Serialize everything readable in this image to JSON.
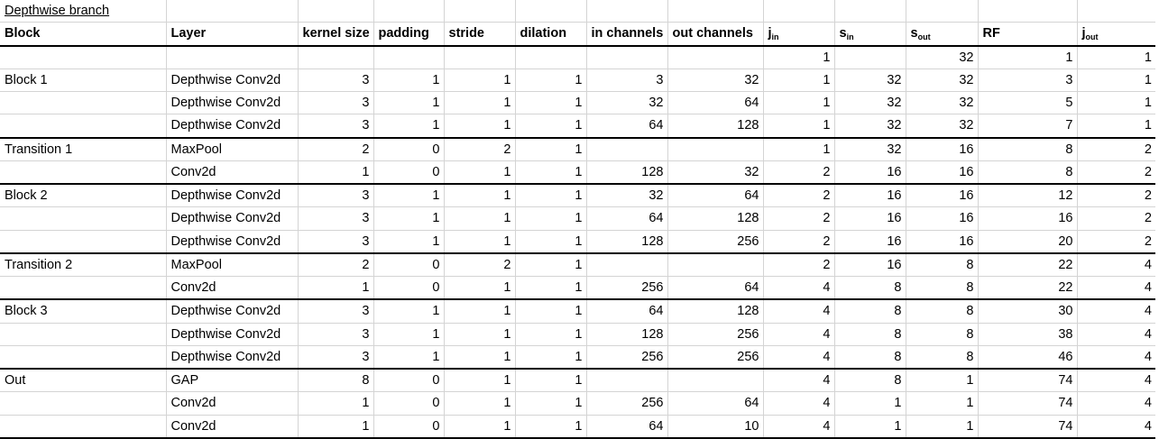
{
  "title": "Depthwise branch",
  "headers": {
    "block": "Block",
    "layer": "Layer",
    "kernel": "kernel size",
    "padding": "padding",
    "stride": "stride",
    "dilation": "dilation",
    "in_ch": "in channels",
    "out_ch": "out channels",
    "jin_base": "j",
    "jin_sub": "in",
    "sin_base": "s",
    "sin_sub": "in",
    "sout_base": "s",
    "sout_sub": "out",
    "rf": "RF",
    "jout_base": "j",
    "jout_sub": "out"
  },
  "rows": [
    {
      "block": "",
      "layer": "",
      "k": "",
      "p": "",
      "s": "",
      "d": "",
      "in": "",
      "out": "",
      "jin": "1",
      "sin": "",
      "sout": "32",
      "rf": "1",
      "jout": "1",
      "thick": false
    },
    {
      "block": "Block 1",
      "layer": "Depthwise Conv2d",
      "k": "3",
      "p": "1",
      "s": "1",
      "d": "1",
      "in": "3",
      "out": "32",
      "jin": "1",
      "sin": "32",
      "sout": "32",
      "rf": "3",
      "jout": "1",
      "thick": false
    },
    {
      "block": "",
      "layer": "Depthwise Conv2d",
      "k": "3",
      "p": "1",
      "s": "1",
      "d": "1",
      "in": "32",
      "out": "64",
      "jin": "1",
      "sin": "32",
      "sout": "32",
      "rf": "5",
      "jout": "1",
      "thick": false
    },
    {
      "block": "",
      "layer": "Depthwise Conv2d",
      "k": "3",
      "p": "1",
      "s": "1",
      "d": "1",
      "in": "64",
      "out": "128",
      "jin": "1",
      "sin": "32",
      "sout": "32",
      "rf": "7",
      "jout": "1",
      "thick": true
    },
    {
      "block": "Transition 1",
      "layer": "MaxPool",
      "k": "2",
      "p": "0",
      "s": "2",
      "d": "1",
      "in": "",
      "out": "",
      "jin": "1",
      "sin": "32",
      "sout": "16",
      "rf": "8",
      "jout": "2",
      "thick": false
    },
    {
      "block": "",
      "layer": "Conv2d",
      "k": "1",
      "p": "0",
      "s": "1",
      "d": "1",
      "in": "128",
      "out": "32",
      "jin": "2",
      "sin": "16",
      "sout": "16",
      "rf": "8",
      "jout": "2",
      "thick": true
    },
    {
      "block": "Block 2",
      "layer": "Depthwise Conv2d",
      "k": "3",
      "p": "1",
      "s": "1",
      "d": "1",
      "in": "32",
      "out": "64",
      "jin": "2",
      "sin": "16",
      "sout": "16",
      "rf": "12",
      "jout": "2",
      "thick": false
    },
    {
      "block": "",
      "layer": "Depthwise Conv2d",
      "k": "3",
      "p": "1",
      "s": "1",
      "d": "1",
      "in": "64",
      "out": "128",
      "jin": "2",
      "sin": "16",
      "sout": "16",
      "rf": "16",
      "jout": "2",
      "thick": false
    },
    {
      "block": "",
      "layer": "Depthwise Conv2d",
      "k": "3",
      "p": "1",
      "s": "1",
      "d": "1",
      "in": "128",
      "out": "256",
      "jin": "2",
      "sin": "16",
      "sout": "16",
      "rf": "20",
      "jout": "2",
      "thick": true
    },
    {
      "block": "Transition 2",
      "layer": "MaxPool",
      "k": "2",
      "p": "0",
      "s": "2",
      "d": "1",
      "in": "",
      "out": "",
      "jin": "2",
      "sin": "16",
      "sout": "8",
      "rf": "22",
      "jout": "4",
      "thick": false
    },
    {
      "block": "",
      "layer": "Conv2d",
      "k": "1",
      "p": "0",
      "s": "1",
      "d": "1",
      "in": "256",
      "out": "64",
      "jin": "4",
      "sin": "8",
      "sout": "8",
      "rf": "22",
      "jout": "4",
      "thick": true
    },
    {
      "block": "Block 3",
      "layer": "Depthwise Conv2d",
      "k": "3",
      "p": "1",
      "s": "1",
      "d": "1",
      "in": "64",
      "out": "128",
      "jin": "4",
      "sin": "8",
      "sout": "8",
      "rf": "30",
      "jout": "4",
      "thick": false
    },
    {
      "block": "",
      "layer": "Depthwise Conv2d",
      "k": "3",
      "p": "1",
      "s": "1",
      "d": "1",
      "in": "128",
      "out": "256",
      "jin": "4",
      "sin": "8",
      "sout": "8",
      "rf": "38",
      "jout": "4",
      "thick": false
    },
    {
      "block": "",
      "layer": "Depthwise Conv2d",
      "k": "3",
      "p": "1",
      "s": "1",
      "d": "1",
      "in": "256",
      "out": "256",
      "jin": "4",
      "sin": "8",
      "sout": "8",
      "rf": "46",
      "jout": "4",
      "thick": true
    },
    {
      "block": "Out",
      "layer": "GAP",
      "k": "8",
      "p": "0",
      "s": "1",
      "d": "1",
      "in": "",
      "out": "",
      "jin": "4",
      "sin": "8",
      "sout": "1",
      "rf": "74",
      "jout": "4",
      "thick": false
    },
    {
      "block": "",
      "layer": "Conv2d",
      "k": "1",
      "p": "0",
      "s": "1",
      "d": "1",
      "in": "256",
      "out": "64",
      "jin": "4",
      "sin": "1",
      "sout": "1",
      "rf": "74",
      "jout": "4",
      "thick": false
    },
    {
      "block": "",
      "layer": "Conv2d",
      "k": "1",
      "p": "0",
      "s": "1",
      "d": "1",
      "in": "64",
      "out": "10",
      "jin": "4",
      "sin": "1",
      "sout": "1",
      "rf": "74",
      "jout": "4",
      "thick": true
    }
  ]
}
